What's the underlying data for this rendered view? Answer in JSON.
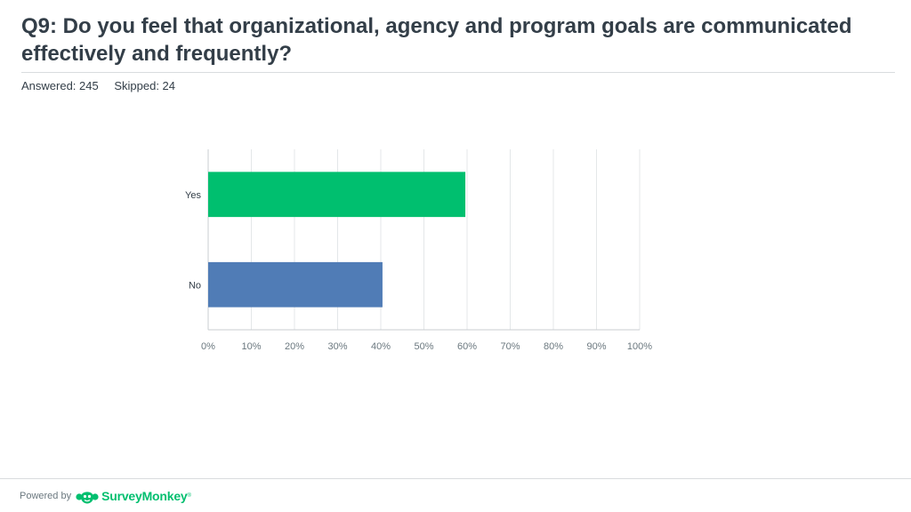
{
  "header": {
    "title": "Q9: Do you feel that organizational, agency and program goals are communicated effectively and frequently?",
    "answered": "Answered: 245",
    "skipped": "Skipped: 24"
  },
  "chart_data": {
    "type": "bar",
    "orientation": "horizontal",
    "categories": [
      "Yes",
      "No"
    ],
    "values": [
      59.6,
      40.4
    ],
    "colors": [
      "#00bf6f",
      "#507cb6"
    ],
    "xlim": [
      0,
      100
    ],
    "xticks": [
      "0%",
      "10%",
      "20%",
      "30%",
      "40%",
      "50%",
      "60%",
      "70%",
      "80%",
      "90%",
      "100%"
    ],
    "grid": true
  },
  "footer": {
    "powered_by": "Powered by",
    "brand": "SurveyMonkey",
    "trademark": "®",
    "brand_icon": "surveymonkey-logo-icon"
  }
}
